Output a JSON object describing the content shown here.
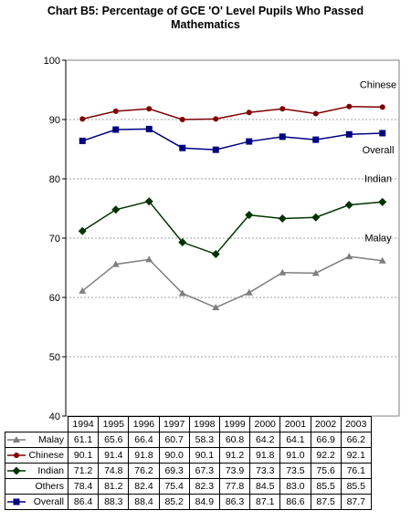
{
  "title_line1": "Chart B5: Percentage of GCE 'O' Level Pupils Who Passed",
  "title_line2": "Mathematics",
  "chart_data": {
    "type": "line",
    "title": "Chart B5: Percentage of GCE 'O' Level Pupils Who Passed Mathematics",
    "categories": [
      "1994",
      "1995",
      "1996",
      "1997",
      "1998",
      "1999",
      "2000",
      "2001",
      "2002",
      "2003"
    ],
    "ylim": [
      40,
      100
    ],
    "yticks": [
      "40",
      "50",
      "60",
      "70",
      "80",
      "90",
      "100"
    ],
    "grid": true,
    "series": [
      {
        "name": "Malay",
        "color": "#7f7f7f",
        "marker": "triangle",
        "plotted": true,
        "label": "Malay",
        "values": [
          61.1,
          65.6,
          66.4,
          60.7,
          58.3,
          60.8,
          64.2,
          64.1,
          66.9,
          66.2
        ]
      },
      {
        "name": "Chinese",
        "color": "#800000",
        "marker": "circle",
        "plotted": true,
        "label": "Chinese",
        "values": [
          90.1,
          91.4,
          91.8,
          90.0,
          90.1,
          91.2,
          91.8,
          91.0,
          92.2,
          92.1
        ]
      },
      {
        "name": "Indian",
        "color": "#003300",
        "marker": "diamond",
        "plotted": true,
        "label": "Indian",
        "values": [
          71.2,
          74.8,
          76.2,
          69.3,
          67.3,
          73.9,
          73.3,
          73.5,
          75.6,
          76.1
        ]
      },
      {
        "name": "Others",
        "color": "#000000",
        "marker": "none",
        "plotted": false,
        "label": "",
        "values": [
          78.4,
          81.2,
          82.4,
          75.4,
          82.3,
          77.8,
          84.5,
          83.0,
          85.5,
          85.5
        ]
      },
      {
        "name": "Overall",
        "color": "#000080",
        "marker": "square",
        "plotted": true,
        "label": "Overall",
        "values": [
          86.4,
          88.3,
          88.4,
          85.2,
          84.9,
          86.3,
          87.1,
          86.6,
          87.5,
          87.7
        ]
      }
    ]
  }
}
